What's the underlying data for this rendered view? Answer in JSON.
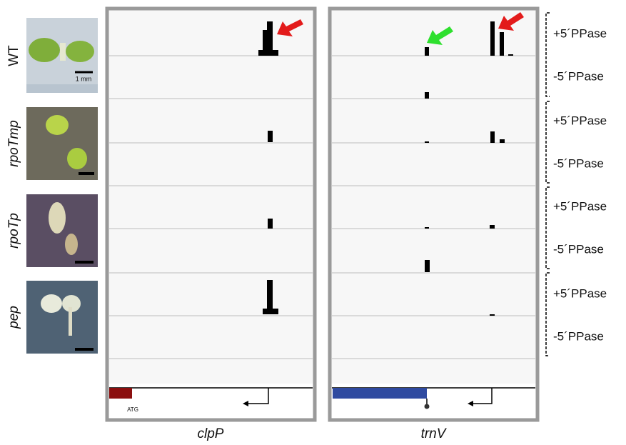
{
  "figure": {
    "rows": [
      "WT",
      "rpoTmp",
      "rpoTp",
      "pep"
    ],
    "scale_label": "1 mm",
    "treatments": [
      "+5´PPase",
      "-5´PPase",
      "+5´PPase",
      "-5´PPase",
      "+5´PPase",
      "-5´PPase",
      "+5´PPase",
      "-5´PPase"
    ],
    "panels": [
      "clpP",
      "trnV"
    ],
    "start_codon": "ATG"
  }
}
